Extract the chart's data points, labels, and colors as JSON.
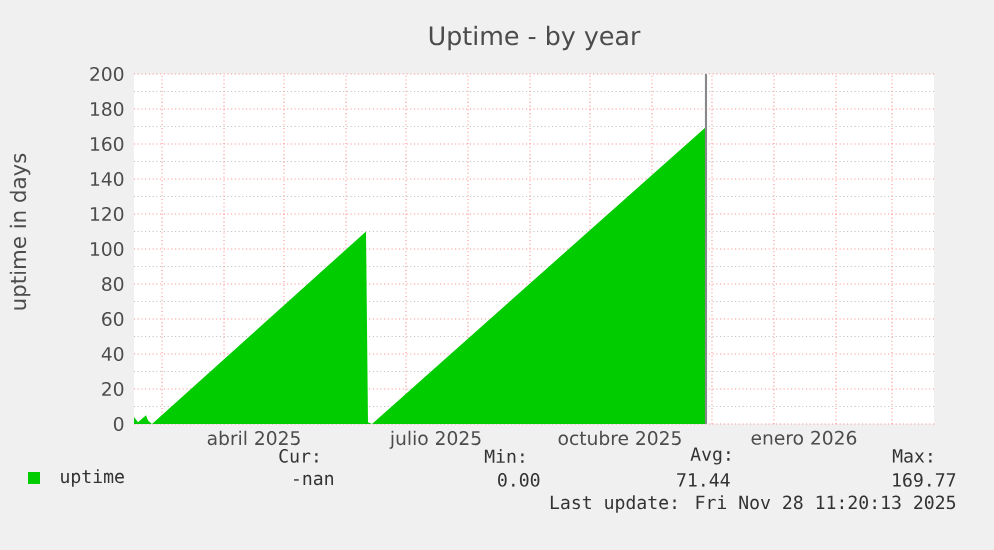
{
  "chart_data": {
    "type": "area",
    "title": "Uptime - by year",
    "ylabel": "uptime in days",
    "x": [
      "2025-02-15",
      "2025-02-17",
      "2025-02-21",
      "2025-02-22",
      "2025-02-24",
      "2025-06-11",
      "2025-06-12",
      "2025-06-14",
      "2025-11-28"
    ],
    "series": [
      {
        "name": "uptime",
        "color": "#00cc00",
        "values": [
          4,
          1,
          5,
          2,
          0,
          110,
          1,
          0,
          169.77
        ]
      }
    ],
    "xlim": [
      "2025-02-15",
      "2026-03-22"
    ],
    "xticks": [
      {
        "value": "2025-03-01",
        "label": null
      },
      {
        "value": "2025-04-01",
        "label": null
      },
      {
        "value": "2025-04-16",
        "label": "abril 2025"
      },
      {
        "value": "2025-05-01",
        "label": null
      },
      {
        "value": "2025-06-01",
        "label": null
      },
      {
        "value": "2025-07-01",
        "label": null
      },
      {
        "value": "2025-07-16",
        "label": "julio 2025"
      },
      {
        "value": "2025-08-01",
        "label": null
      },
      {
        "value": "2025-09-01",
        "label": null
      },
      {
        "value": "2025-10-01",
        "label": null
      },
      {
        "value": "2025-10-16",
        "label": "octubre 2025"
      },
      {
        "value": "2025-11-01",
        "label": null
      },
      {
        "value": "2025-12-01",
        "label": null
      },
      {
        "value": "2026-01-01",
        "label": null
      },
      {
        "value": "2026-01-16",
        "label": "enero 2026"
      },
      {
        "value": "2026-02-01",
        "label": null
      },
      {
        "value": "2026-03-01",
        "label": null
      }
    ],
    "ylim": [
      0,
      200
    ],
    "yticks": [
      0,
      20,
      40,
      60,
      80,
      100,
      120,
      140,
      160,
      180,
      200
    ],
    "grid": true,
    "legend": "bottom",
    "ref_lines": [
      {
        "axis": "x",
        "value": "2025-11-28",
        "color": "#888888"
      }
    ],
    "annotations": [
      "Cur:",
      "Min:",
      "Avg:",
      "Max:",
      "-nan",
      "0.00",
      "71.44",
      "169.77",
      "Last update: Fri Nov 28 11:20:13 2025"
    ]
  }
}
